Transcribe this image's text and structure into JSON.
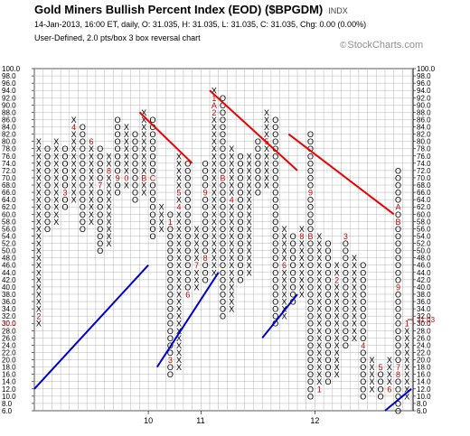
{
  "header": {
    "title": "Gold Miners Bullish Percent Index (EOD) ($BPGDM)",
    "exchange": "INDX",
    "quote_line": "14-Jan-2013, 16:00 ET, daily, O: 31.035, H: 31.035, L: 31.035, C: 31.035, Chg: 0.00 (0.00%)",
    "chart_line": "User-Defined, 2.0 pts/box 3 box reversal chart",
    "brand": "StockCharts.com"
  },
  "colors": {
    "x_mark": "#000000",
    "o_mark": "#000000",
    "month_marker": "#cc0000",
    "grid": "#b4b4b4",
    "support_line": "#0000cc",
    "resistance_line": "#ee0000",
    "last_value_label": "#cc0000"
  },
  "chart_data": {
    "type": "point-and-figure",
    "box_size": 2,
    "reversal": 3,
    "ylim": [
      6,
      100
    ],
    "y_ticks": [
      100,
      98,
      96,
      94,
      92,
      90,
      88,
      86,
      84,
      82,
      80,
      78,
      76,
      74,
      72,
      70,
      68,
      66,
      64,
      62,
      60,
      58,
      56,
      54,
      52,
      50,
      48,
      46,
      44,
      42,
      40,
      38,
      36,
      34,
      32,
      30,
      28,
      26,
      24,
      22,
      20,
      18,
      16,
      14,
      12,
      10,
      8,
      6
    ],
    "year_labels": [
      {
        "column": 13,
        "text": "10"
      },
      {
        "column": 19,
        "text": "11"
      },
      {
        "column": 32,
        "text": "12"
      }
    ],
    "last_value": {
      "value": 31.03,
      "label": "31.03"
    },
    "left_value_label": {
      "value": 30,
      "label": "30.0"
    },
    "columns": [
      {
        "type": "X",
        "low": 30,
        "high": 80,
        "markers": {
          "32": "2"
        }
      },
      {
        "type": "O",
        "low": 56,
        "high": 78
      },
      {
        "type": "X",
        "low": 58,
        "high": 80
      },
      {
        "type": "O",
        "low": 62,
        "high": 78,
        "markers": {
          "66": "3"
        }
      },
      {
        "type": "X",
        "low": 64,
        "high": 86,
        "markers": {
          "84": "4"
        }
      },
      {
        "type": "O",
        "low": 56,
        "high": 84
      },
      {
        "type": "X",
        "low": 58,
        "high": 80,
        "markers": {
          "80": "6"
        }
      },
      {
        "type": "O",
        "low": 50,
        "high": 78,
        "markers": {
          "68": "7"
        }
      },
      {
        "type": "X",
        "low": 52,
        "high": 76,
        "markers": {
          "72": "8"
        }
      },
      {
        "type": "O",
        "low": 66,
        "high": 86,
        "markers": {
          "70": "9"
        }
      },
      {
        "type": "X",
        "low": 68,
        "high": 84,
        "markers": {
          "70": "0"
        }
      },
      {
        "type": "O",
        "low": 64,
        "high": 82
      },
      {
        "type": "X",
        "low": 66,
        "high": 88,
        "markers": {
          "70": "B"
        }
      },
      {
        "type": "O",
        "low": 54,
        "high": 86,
        "markers": {
          "70": "C"
        }
      },
      {
        "type": "X",
        "low": 56,
        "high": 62
      },
      {
        "type": "O",
        "low": 16,
        "high": 60,
        "markers": {
          "20": "3",
          "58": "1"
        }
      },
      {
        "type": "X",
        "low": 18,
        "high": 76,
        "markers": {
          "62": "4",
          "66": "5"
        }
      },
      {
        "type": "O",
        "low": 38,
        "high": 74,
        "markers": {
          "38": "6"
        }
      },
      {
        "type": "X",
        "low": 40,
        "high": 56,
        "markers": {
          "46": "7"
        }
      },
      {
        "type": "O",
        "low": 42,
        "high": 74,
        "markers": {
          "48": "8",
          "66": "9"
        }
      },
      {
        "type": "X",
        "low": 44,
        "high": 94,
        "markers": {
          "88": "2",
          "90": "A",
          "92": "1"
        }
      },
      {
        "type": "O",
        "low": 32,
        "high": 92,
        "markers": {
          "70": "B"
        }
      },
      {
        "type": "X",
        "low": 34,
        "high": 78,
        "markers": {
          "64": "4"
        }
      },
      {
        "type": "O",
        "low": 42,
        "high": 76
      },
      {
        "type": "X",
        "low": 44,
        "high": 76
      },
      {
        "type": "O",
        "low": 66,
        "high": 80
      },
      {
        "type": "X",
        "low": 68,
        "high": 88,
        "markers": {
          "80": "5"
        }
      },
      {
        "type": "O",
        "low": 30,
        "high": 86
      },
      {
        "type": "X",
        "low": 32,
        "high": 56,
        "markers": {
          "46": "6"
        }
      },
      {
        "type": "O",
        "low": 36,
        "high": 54
      },
      {
        "type": "X",
        "low": 38,
        "high": 56,
        "markers": {
          "54": "8"
        }
      },
      {
        "type": "O",
        "low": 10,
        "high": 82,
        "markers": {
          "54": "B",
          "66": "9"
        }
      },
      {
        "type": "X",
        "low": 12,
        "high": 54,
        "markers": {
          "12": "1"
        }
      },
      {
        "type": "O",
        "low": 14,
        "high": 52
      },
      {
        "type": "X",
        "low": 16,
        "high": 46,
        "markers": {
          "42": "2"
        }
      },
      {
        "type": "O",
        "low": 24,
        "high": 54,
        "markers": {
          "54": "3"
        }
      },
      {
        "type": "X",
        "low": 26,
        "high": 48
      },
      {
        "type": "O",
        "low": 10,
        "high": 46,
        "markers": {
          "24": "4"
        }
      },
      {
        "type": "X",
        "low": 12,
        "high": 20
      },
      {
        "type": "O",
        "low": 10,
        "high": 18,
        "markers": {
          "18": "5"
        }
      },
      {
        "type": "X",
        "low": 12,
        "high": 20,
        "markers": {
          "12": "6"
        }
      },
      {
        "type": "O",
        "low": 6,
        "high": 72,
        "markers": {
          "18": "7",
          "16": "8",
          "40": "9",
          "58": "B",
          "62": "A"
        }
      },
      {
        "type": "X",
        "low": 10,
        "high": 30,
        "markers": {
          "30": "1"
        }
      }
    ],
    "trendlines": [
      {
        "kind": "support",
        "from": {
          "column": 0,
          "value": 12
        },
        "to": {
          "column": 13,
          "value": 46
        }
      },
      {
        "kind": "support",
        "from": {
          "column": 14,
          "value": 18
        },
        "to": {
          "column": 21,
          "value": 44
        }
      },
      {
        "kind": "support",
        "from": {
          "column": 26,
          "value": 26
        },
        "to": {
          "column": 30,
          "value": 38
        }
      },
      {
        "kind": "support",
        "from": {
          "column": 40,
          "value": 6
        },
        "to": {
          "column": 43,
          "value": 12
        }
      },
      {
        "kind": "resistance",
        "from": {
          "column": 12,
          "value": 88
        },
        "to": {
          "column": 18,
          "value": 74
        }
      },
      {
        "kind": "resistance",
        "from": {
          "column": 20,
          "value": 94
        },
        "to": {
          "column": 30,
          "value": 72
        }
      },
      {
        "kind": "resistance",
        "from": {
          "column": 29,
          "value": 82
        },
        "to": {
          "column": 41,
          "value": 60
        }
      }
    ]
  }
}
